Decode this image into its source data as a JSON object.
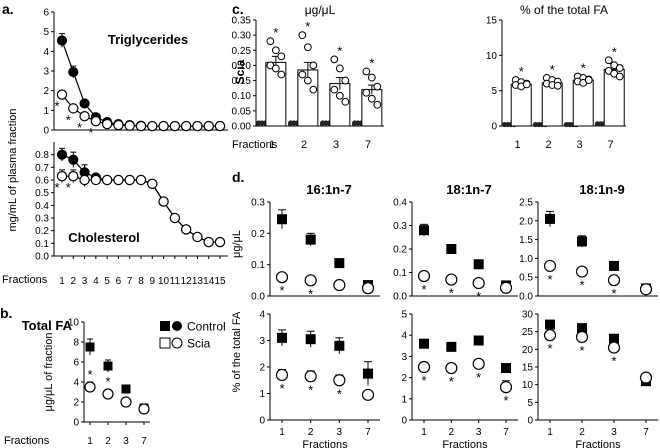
{
  "panel_letters": {
    "a": "a.",
    "b": "b.",
    "c": "c.",
    "d": "d."
  },
  "shared": {
    "fractions_label": "Fractions",
    "a_ylabel": "mg/mL of plasma  fraction",
    "c_side_label": "Scia",
    "d_ylabel_top": "μg/μL",
    "d_ylabel_bottom": "% of the total FA"
  },
  "chart_data": [
    {
      "id": "a_top",
      "type": "line",
      "annotation": "Triglycerides",
      "ylim": [
        0,
        6
      ],
      "yticks": [
        0,
        1,
        2,
        3,
        4,
        5,
        6
      ],
      "x": [
        1,
        2,
        3,
        4,
        5,
        6,
        7,
        8,
        9,
        10,
        11,
        12,
        13,
        14,
        15
      ],
      "series": [
        {
          "name": "Control",
          "marker": "filled-circle",
          "values": [
            4.55,
            2.95,
            1.35,
            0.65,
            0.4,
            0.3,
            0.25,
            0.22,
            0.2,
            0.2,
            0.2,
            0.2,
            0.2,
            0.2,
            0.2
          ],
          "errors": [
            0.35,
            0.3,
            0.15,
            0.1,
            0,
            0,
            0,
            0,
            0,
            0,
            0,
            0,
            0,
            0,
            0
          ]
        },
        {
          "name": "Scia",
          "marker": "open-circle",
          "values": [
            1.8,
            1.1,
            0.7,
            0.45,
            0.3,
            0.25,
            0.22,
            0.2,
            0.2,
            0.2,
            0.2,
            0.2,
            0.2,
            0.2,
            0.2
          ],
          "errors": [
            0.2,
            0.15,
            0,
            0,
            0,
            0,
            0,
            0,
            0,
            0,
            0,
            0,
            0,
            0,
            0
          ]
        }
      ],
      "sig_x": [
        1,
        2,
        3,
        4
      ]
    },
    {
      "id": "a_bottom",
      "type": "line",
      "annotation": "Cholesterol",
      "ylim": [
        0,
        0.9
      ],
      "yticks": [
        0.0,
        0.1,
        0.2,
        0.3,
        0.4,
        0.5,
        0.6,
        0.7,
        0.8
      ],
      "ytick_labels": [
        "0.0",
        "0.1",
        "0.2",
        "0.3",
        "0.4",
        "0.5",
        "0.6",
        "0.7",
        "0.8"
      ],
      "x": [
        1,
        2,
        3,
        4,
        5,
        6,
        7,
        8,
        9,
        10,
        11,
        12,
        13,
        14,
        15
      ],
      "xticks": [
        "1",
        "2",
        "3",
        "4",
        "5",
        "6",
        "7",
        "8",
        "9",
        "10",
        "11",
        "12",
        "13",
        "14",
        "15"
      ],
      "series": [
        {
          "name": "Control",
          "marker": "filled-circle",
          "values": [
            0.8,
            0.76,
            0.66,
            0.62,
            0.6,
            0.6,
            0.6,
            0.6,
            0.57,
            0.43,
            0.3,
            0.21,
            0.15,
            0.11,
            0.11
          ],
          "errors": [
            0.05,
            0.06,
            0.06,
            0,
            0,
            0,
            0,
            0,
            0,
            0,
            0,
            0,
            0,
            0,
            0
          ]
        },
        {
          "name": "Scia",
          "marker": "open-circle",
          "values": [
            0.63,
            0.63,
            0.6,
            0.6,
            0.6,
            0.6,
            0.6,
            0.6,
            0.57,
            0.43,
            0.3,
            0.21,
            0.15,
            0.11,
            0.11
          ],
          "errors": [
            0.05,
            0.05,
            0.05,
            0,
            0,
            0,
            0,
            0,
            0,
            0,
            0,
            0,
            0,
            0,
            0
          ]
        }
      ],
      "sig_x": [
        1,
        2
      ]
    },
    {
      "id": "b",
      "type": "scatter",
      "title": "Total FA",
      "ylabel": "μg/μL of fraction",
      "ylim": [
        0,
        10
      ],
      "yticks": [
        0,
        2,
        4,
        6,
        8,
        10
      ],
      "categories": [
        "1",
        "2",
        "3",
        "7"
      ],
      "legend": {
        "placement": "top-right",
        "entries": [
          "Control",
          "Scia"
        ]
      },
      "series": [
        {
          "name": "Control",
          "marker": "filled-square",
          "values": [
            7.5,
            5.6,
            3.3,
            1.4
          ],
          "errors": [
            0.8,
            0.6,
            0,
            0
          ]
        },
        {
          "name": "Scia",
          "marker": "open-circle",
          "values": [
            3.5,
            2.8,
            2.0,
            1.3
          ],
          "errors": [
            0.5,
            0.4,
            0.3,
            0
          ]
        }
      ],
      "sig": [
        0,
        1
      ]
    },
    {
      "id": "c_left",
      "type": "bar",
      "title": "μg/μL",
      "ylim": [
        0,
        0.35
      ],
      "yticks": [
        0,
        0.05,
        0.1,
        0.15,
        0.2,
        0.25,
        0.3,
        0.35
      ],
      "ytick_labels": [
        "0.00",
        "0.05",
        "0.10",
        "0.15",
        "0.20",
        "0.25",
        "0.30",
        "0.35"
      ],
      "categories": [
        "1",
        "2",
        "3",
        "7"
      ],
      "control_values": [
        0.01,
        0.01,
        0.01,
        0.01
      ],
      "bar_values": [
        0.21,
        0.185,
        0.14,
        0.12
      ],
      "bar_errors": [
        0.02,
        0.025,
        0.02,
        0.015
      ],
      "points": [
        [
          0.28,
          0.25,
          0.23,
          0.2,
          0.19,
          0.17
        ],
        [
          0.3,
          0.26,
          0.2,
          0.17,
          0.15,
          0.12
        ],
        [
          0.22,
          0.19,
          0.15,
          0.12,
          0.1,
          0.08
        ],
        [
          0.18,
          0.16,
          0.13,
          0.11,
          0.09,
          0.07
        ]
      ],
      "sig": [
        0,
        1,
        2,
        3
      ]
    },
    {
      "id": "c_right",
      "type": "bar",
      "title": "% of the total FA",
      "ylim": [
        0,
        15
      ],
      "yticks": [
        0,
        5,
        10,
        15
      ],
      "categories": [
        "1",
        "2",
        "3",
        "7"
      ],
      "control_values": [
        0.2,
        0.2,
        0.2,
        0.3
      ],
      "bar_values": [
        5.9,
        6.1,
        6.5,
        8.0
      ],
      "bar_errors": [
        0.4,
        0.3,
        0.4,
        0.6
      ],
      "points": [
        [
          6.5,
          6.2,
          6.0,
          5.8,
          5.6,
          5.9
        ],
        [
          6.8,
          6.5,
          6.3,
          6.0,
          5.8,
          5.7
        ],
        [
          7.0,
          6.8,
          6.6,
          6.3,
          6.1,
          6.5
        ],
        [
          9.3,
          8.6,
          8.2,
          7.8,
          7.4,
          7.0
        ]
      ],
      "sig": [
        0,
        1,
        2,
        3
      ]
    },
    {
      "id": "d_16_top",
      "type": "scatter",
      "title": "16:1n-7",
      "ylim": [
        0,
        0.3
      ],
      "yticks": [
        0,
        0.1,
        0.2,
        0.3
      ],
      "ytick_labels": [
        "0.0",
        "0.1",
        "0.2",
        "0.3"
      ],
      "categories": [
        "1",
        "2",
        "3",
        "7"
      ],
      "series": [
        {
          "name": "Control",
          "marker": "filled-square",
          "values": [
            0.245,
            0.18,
            0.105,
            0.035
          ],
          "errors": [
            0.03,
            0.02,
            0,
            0
          ]
        },
        {
          "name": "Scia",
          "marker": "open-circle",
          "values": [
            0.06,
            0.05,
            0.035,
            0.025
          ],
          "errors": [
            0.008,
            0,
            0,
            0
          ]
        }
      ],
      "sig": [
        0,
        1
      ]
    },
    {
      "id": "d_18n7_top",
      "type": "scatter",
      "title": "18:1n-7",
      "ylim": [
        0,
        0.4
      ],
      "yticks": [
        0,
        0.1,
        0.2,
        0.3,
        0.4
      ],
      "ytick_labels": [
        "0.0",
        "0.1",
        "0.2",
        "0.3",
        "0.4"
      ],
      "categories": [
        "1",
        "2",
        "3",
        "7"
      ],
      "series": [
        {
          "name": "Control",
          "marker": "filled-square",
          "values": [
            0.28,
            0.2,
            0.135,
            0.045
          ],
          "errors": [
            0.025,
            0.015,
            0,
            0
          ]
        },
        {
          "name": "Scia",
          "marker": "open-circle",
          "values": [
            0.085,
            0.07,
            0.055,
            0.035
          ],
          "errors": [
            0,
            0,
            0,
            0
          ]
        }
      ],
      "sig": [
        0,
        1,
        2
      ]
    },
    {
      "id": "d_18n9_top",
      "type": "scatter",
      "title": "18:1n-9",
      "ylim": [
        0,
        2.5
      ],
      "yticks": [
        0,
        0.5,
        1.0,
        1.5,
        2.0,
        2.5
      ],
      "ytick_labels": [
        "0.0",
        "0.5",
        "1.0",
        "1.5",
        "2.0",
        "2.5"
      ],
      "categories": [
        "1",
        "2",
        "3",
        "7"
      ],
      "series": [
        {
          "name": "Control",
          "marker": "filled-square",
          "values": [
            2.05,
            1.45,
            0.8,
            0.2
          ],
          "errors": [
            0.2,
            0.15,
            0,
            0
          ]
        },
        {
          "name": "Scia",
          "marker": "open-circle",
          "values": [
            0.8,
            0.65,
            0.42,
            0.18
          ],
          "errors": [
            0,
            0,
            0,
            0
          ]
        }
      ],
      "sig": [
        0,
        1,
        2
      ]
    },
    {
      "id": "d_16_bottom",
      "type": "scatter",
      "ylim": [
        0,
        4
      ],
      "yticks": [
        0,
        1,
        2,
        3,
        4
      ],
      "categories": [
        "1",
        "2",
        "3",
        "7"
      ],
      "series": [
        {
          "name": "Control",
          "marker": "filled-square",
          "values": [
            3.1,
            3.05,
            2.8,
            1.75
          ],
          "errors": [
            0.3,
            0.3,
            0.3,
            0.45
          ]
        },
        {
          "name": "Scia",
          "marker": "open-circle",
          "values": [
            1.7,
            1.65,
            1.5,
            0.95
          ],
          "errors": [
            0.2,
            0.2,
            0.2,
            0.15
          ]
        }
      ],
      "sig": [
        0,
        1,
        2
      ]
    },
    {
      "id": "d_18n7_bottom",
      "type": "scatter",
      "ylim": [
        0,
        5
      ],
      "yticks": [
        0,
        1,
        2,
        3,
        4,
        5
      ],
      "categories": [
        "1",
        "2",
        "3",
        "7"
      ],
      "series": [
        {
          "name": "Control",
          "marker": "filled-square",
          "values": [
            3.6,
            3.45,
            3.75,
            2.45
          ],
          "errors": [
            0,
            0,
            0,
            0
          ]
        },
        {
          "name": "Scia",
          "marker": "open-circle",
          "values": [
            2.5,
            2.45,
            2.65,
            1.55
          ],
          "errors": [
            0,
            0,
            0,
            0.3
          ]
        }
      ],
      "sig": [
        0,
        1,
        2,
        3
      ]
    },
    {
      "id": "d_18n9_bottom",
      "type": "scatter",
      "ylim": [
        0,
        30
      ],
      "yticks": [
        0,
        5,
        10,
        15,
        20,
        25,
        30
      ],
      "categories": [
        "1",
        "2",
        "3",
        "7"
      ],
      "categories_label": "Fractions",
      "series": [
        {
          "name": "Control",
          "marker": "filled-square",
          "values": [
            27,
            26,
            23,
            11
          ],
          "errors": [
            0,
            0,
            0,
            0
          ]
        },
        {
          "name": "Scia",
          "marker": "open-circle",
          "values": [
            24,
            23.5,
            20.5,
            12
          ],
          "errors": [
            0,
            0,
            0,
            0
          ]
        }
      ],
      "sig": [
        0,
        1,
        2
      ]
    }
  ]
}
